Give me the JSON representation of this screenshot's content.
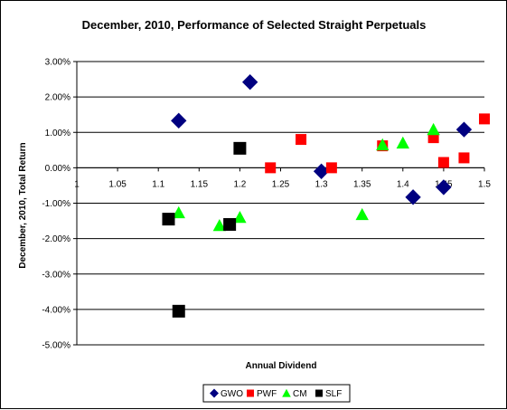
{
  "chart_data": {
    "type": "scatter",
    "title": "December, 2010,  Performance of Selected Straight Perpetuals",
    "xlabel": "Annual Dividend",
    "ylabel": "December, 2010, Total Return",
    "xlim": [
      1,
      1.5
    ],
    "ylim": [
      -5,
      3
    ],
    "x_ticks": [
      "1",
      "1.05",
      "1.1",
      "1.15",
      "1.2",
      "1.25",
      "1.3",
      "1.35",
      "1.4",
      "1.45",
      "1.5"
    ],
    "y_ticks": [
      "3.00%",
      "2.00%",
      "1.00%",
      "0.00%",
      "-1.00%",
      "-2.00%",
      "-3.00%",
      "-4.00%",
      "-5.00%"
    ],
    "grid": "horizontal",
    "legend": "bottom",
    "series": [
      {
        "name": "GWO",
        "marker": "diamond",
        "color": "#000080",
        "points": [
          {
            "x": 1.125,
            "y": 1.33
          },
          {
            "x": 1.2125,
            "y": 2.42
          },
          {
            "x": 1.3,
            "y": -0.1
          },
          {
            "x": 1.4125,
            "y": -0.83
          },
          {
            "x": 1.45,
            "y": -0.55
          },
          {
            "x": 1.475,
            "y": 1.08
          }
        ]
      },
      {
        "name": "PWF",
        "marker": "square",
        "color": "#ff0000",
        "points": [
          {
            "x": 1.2375,
            "y": 0.0
          },
          {
            "x": 1.275,
            "y": 0.8
          },
          {
            "x": 1.3125,
            "y": 0.0
          },
          {
            "x": 1.375,
            "y": 0.62
          },
          {
            "x": 1.4375,
            "y": 0.85
          },
          {
            "x": 1.45,
            "y": 0.15
          },
          {
            "x": 1.475,
            "y": 0.28
          },
          {
            "x": 1.5,
            "y": 1.38
          }
        ]
      },
      {
        "name": "CM",
        "marker": "triangle",
        "color": "#00ff00",
        "points": [
          {
            "x": 1.125,
            "y": -1.27
          },
          {
            "x": 1.175,
            "y": -1.63
          },
          {
            "x": 1.2,
            "y": -1.4
          },
          {
            "x": 1.35,
            "y": -1.32
          },
          {
            "x": 1.375,
            "y": 0.65
          },
          {
            "x": 1.4,
            "y": 0.7
          },
          {
            "x": 1.4375,
            "y": 1.08
          }
        ]
      },
      {
        "name": "SLF",
        "marker": "square",
        "color": "#000000",
        "points": [
          {
            "x": 1.1125,
            "y": -1.45
          },
          {
            "x": 1.125,
            "y": -4.05
          },
          {
            "x": 1.1875,
            "y": -1.6
          },
          {
            "x": 1.2,
            "y": 0.55
          }
        ]
      }
    ]
  }
}
